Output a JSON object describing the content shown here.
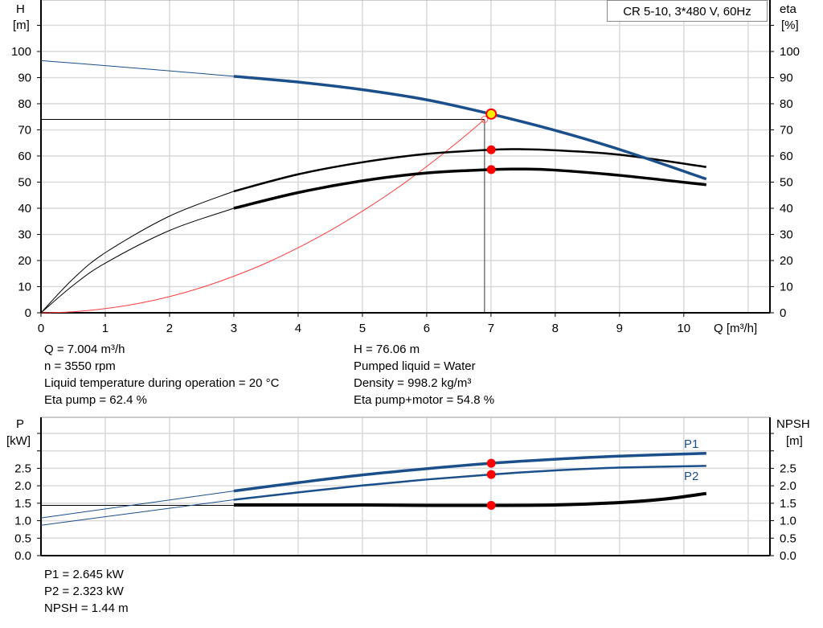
{
  "chart_data": [
    {
      "type": "line",
      "title": "CR 5-10, 3*480 V, 60Hz",
      "ylabel": "H",
      "yunit": "[m]",
      "y2label": "eta",
      "y2unit": "[%]",
      "xlabel": "Q [m³/h]",
      "xlim": [
        0,
        11.34
      ],
      "ylim": [
        0,
        119.7
      ],
      "grid": true,
      "xticks": [
        0,
        1,
        2,
        3,
        4,
        5,
        6,
        7,
        8,
        9,
        10
      ],
      "yticks": [
        0,
        10,
        20,
        30,
        40,
        50,
        60,
        70,
        80,
        90,
        100
      ],
      "series": [
        {
          "key": "H",
          "color": "#1a4f8b",
          "x": [
            0,
            1,
            2,
            3,
            4,
            5,
            6,
            7,
            8,
            9,
            10.35
          ],
          "y": [
            96.5,
            94.6,
            92.6,
            90.5,
            88.3,
            85.4,
            81.5,
            76.06,
            69.8,
            62.5,
            51.2
          ],
          "thin_until": 3
        },
        {
          "key": "eta_pump",
          "color": "#000000",
          "x": [
            0,
            0.5,
            1,
            2,
            3,
            4,
            5,
            6,
            7,
            7.5,
            8,
            9,
            10.35
          ],
          "y": [
            0,
            13,
            23,
            37,
            46.5,
            53,
            57.6,
            60.8,
            62.4,
            62.6,
            62.2,
            60.5,
            55.8
          ],
          "thin_until": 3
        },
        {
          "key": "eta_pump_motor",
          "color": "#000000",
          "x": [
            0,
            0.5,
            1,
            2,
            3,
            4,
            5,
            6,
            7,
            7.5,
            8,
            9,
            10.35
          ],
          "y": [
            0,
            10.5,
            19,
            31.5,
            40,
            46,
            50.5,
            53.5,
            54.8,
            55,
            54.6,
            52.6,
            49
          ],
          "thin_until": 3
        },
        {
          "key": "system",
          "color": "#ff3b3b",
          "x": [
            0,
            0.5,
            1,
            1.5,
            2,
            2.5,
            3,
            3.5,
            4,
            4.5,
            5,
            5.5,
            6,
            6.5,
            6.9
          ],
          "y": [
            0,
            0.4,
            1.6,
            3.5,
            6.2,
            9.7,
            14,
            19,
            24.9,
            31.5,
            38.9,
            47,
            56,
            65.7,
            74
          ]
        }
      ],
      "operating_point": {
        "Q": 7.004,
        "H": 76.06,
        "eta_pump": 62.4,
        "eta_total": 54.8
      },
      "duty_point": {
        "Q": 6.9,
        "H": 74
      }
    },
    {
      "type": "line",
      "ylabel": "P",
      "yunit": "[kW]",
      "y2label": "NPSH",
      "y2unit": "[m]",
      "xlim": [
        0,
        11.34
      ],
      "ylim": [
        0,
        3.96
      ],
      "grid": true,
      "yticks": [
        0.0,
        0.5,
        1.0,
        1.5,
        2.0,
        2.5
      ],
      "yticklabels": [
        "0.0",
        "0.5",
        "1.0",
        "1.5",
        "2.0",
        "2.5"
      ],
      "series": [
        {
          "name": "P1",
          "color": "#1a4f8b",
          "x": [
            0,
            3,
            4,
            5,
            6,
            7,
            8,
            9,
            10.35
          ],
          "y": [
            1.08,
            1.85,
            2.09,
            2.31,
            2.49,
            2.645,
            2.76,
            2.85,
            2.93
          ],
          "thin_until": 3
        },
        {
          "name": "P2",
          "color": "#1a4f8b",
          "x": [
            0,
            3,
            4,
            5,
            6,
            7,
            8,
            9,
            10.35
          ],
          "y": [
            0.87,
            1.6,
            1.81,
            2.01,
            2.18,
            2.323,
            2.44,
            2.52,
            2.57
          ],
          "thin_until": 3
        },
        {
          "key": "NPSH",
          "color": "#000000",
          "x": [
            3,
            4,
            5,
            6,
            7,
            8,
            9,
            9.7,
            10.35
          ],
          "y": [
            1.45,
            1.45,
            1.45,
            1.44,
            1.44,
            1.45,
            1.52,
            1.62,
            1.78
          ]
        }
      ],
      "operating_point": {
        "Q": 7.004,
        "P1": 2.645,
        "P2": 2.323,
        "NPSH": 1.44
      },
      "npsh_ref": 1.44
    }
  ],
  "info": {
    "q": "Q = 7.004 m³/h",
    "n": "n = 3550 rpm",
    "temp": "Liquid temperature during operation = 20 °C",
    "eta_pump": "Eta pump = 62.4 %",
    "h": "H = 76.06 m",
    "liquid": "Pumped liquid = Water",
    "density": "Density = 998.2 kg/m³",
    "eta_total": "Eta pump+motor = 54.8 %",
    "p1": "P1 = 2.645 kW",
    "p2": "P2 = 2.323 kW",
    "npsh": "NPSH = 1.44 m"
  }
}
